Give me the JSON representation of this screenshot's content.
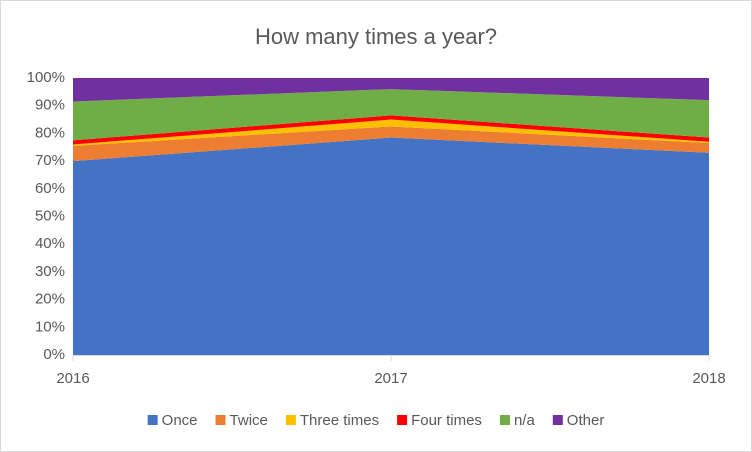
{
  "chart_data": {
    "type": "stacked-area",
    "title": "How many times a year?",
    "x": [
      2016,
      2017,
      2018
    ],
    "xlim": [
      2016,
      2018
    ],
    "xticks": [
      2016,
      2017,
      2018
    ],
    "ylim": [
      0,
      100
    ],
    "yticks": [
      {
        "value": 0,
        "label": "0%"
      },
      {
        "value": 10,
        "label": "10%"
      },
      {
        "value": 20,
        "label": "20%"
      },
      {
        "value": 30,
        "label": "30%"
      },
      {
        "value": 40,
        "label": "40%"
      },
      {
        "value": 50,
        "label": "50%"
      },
      {
        "value": 60,
        "label": "60%"
      },
      {
        "value": 70,
        "label": "70%"
      },
      {
        "value": 80,
        "label": "80%"
      },
      {
        "value": 90,
        "label": "90%"
      },
      {
        "value": 100,
        "label": "100%"
      }
    ],
    "grid": false,
    "legend": "bottom",
    "series": [
      {
        "name": "Once",
        "color": "#4472c4",
        "values": [
          70,
          78.5,
          73
        ]
      },
      {
        "name": "Twice",
        "color": "#ed7d31",
        "values": [
          5.5,
          4,
          3.5
        ]
      },
      {
        "name": "Three times",
        "color": "#ffc000",
        "values": [
          0.5,
          2.5,
          0.5
        ]
      },
      {
        "name": "Four times",
        "color": "#ff0000",
        "values": [
          1.5,
          1.5,
          1.5
        ]
      },
      {
        "name": "n/a",
        "color": "#70ad47",
        "values": [
          14,
          9.5,
          13.5
        ]
      },
      {
        "name": "Other",
        "color": "#7030a0",
        "values": [
          8.5,
          4,
          8
        ]
      }
    ]
  }
}
